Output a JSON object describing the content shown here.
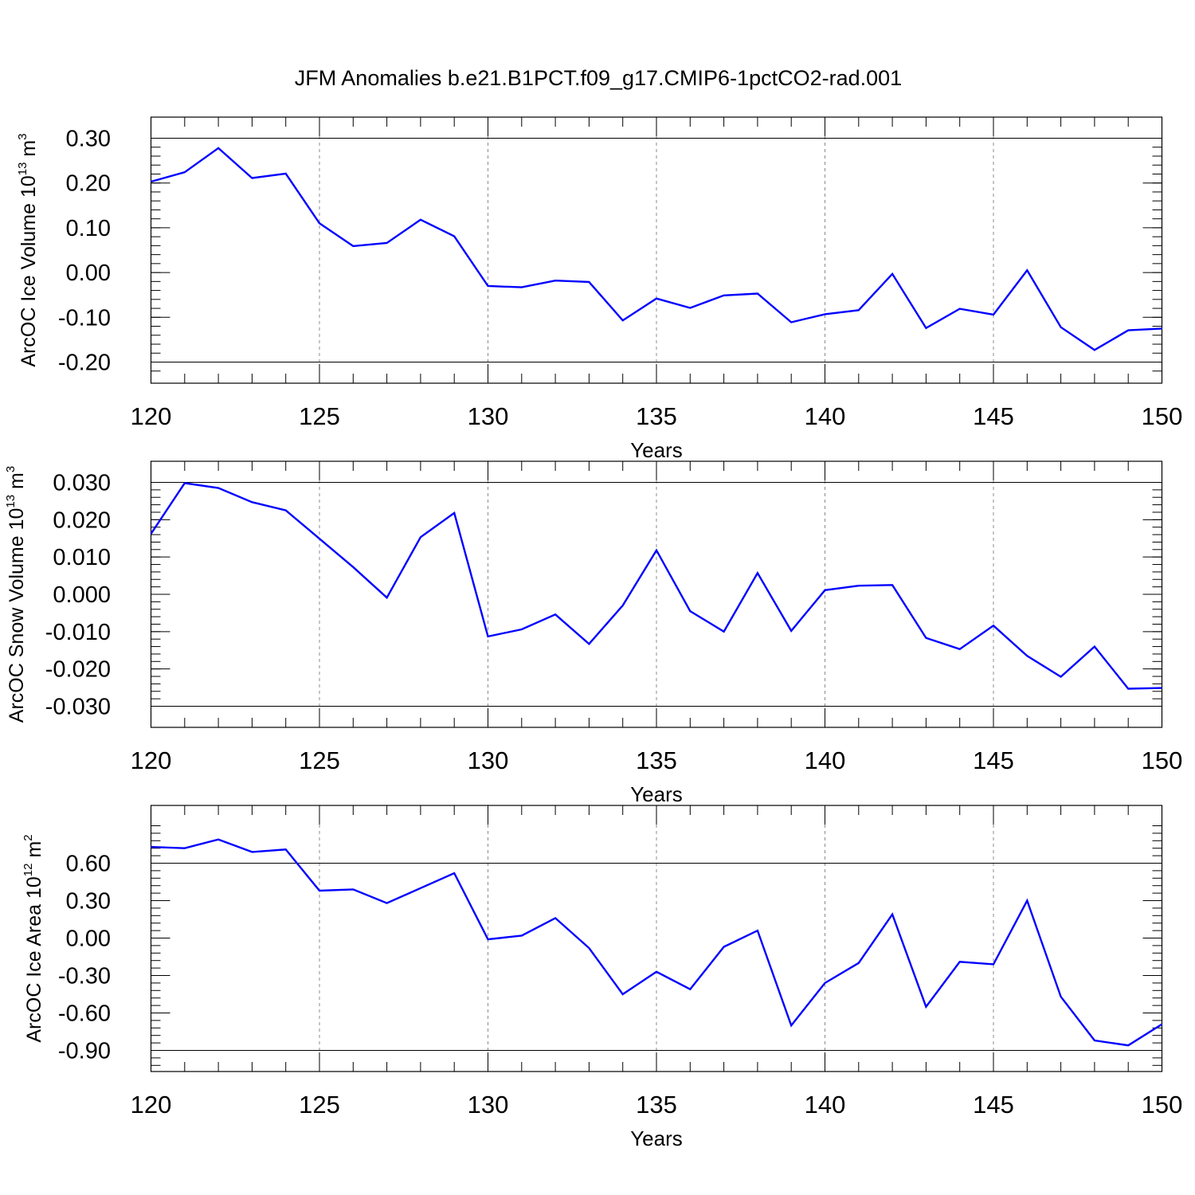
{
  "title": "JFM Anomalies b.e21.B1PCT.f09_g17.CMIP6-1pctCO2-rad.001",
  "chart_data": [
    {
      "type": "line",
      "title": "",
      "xlabel": "Years",
      "ylabel": "ArcOC Ice Volume 10",
      "ylabel_exp": "13",
      "ylabel_unit": "m",
      "ylabel_unit_exp": "3",
      "xlim": [
        120,
        150
      ],
      "ylim": [
        -0.22,
        0.3
      ],
      "x_ticks": [
        "120",
        "125",
        "130",
        "135",
        "140",
        "145",
        "150"
      ],
      "y_ticks": [
        "0.30",
        "0.20",
        "0.10",
        "0.00",
        "-0.10",
        "-0.20"
      ],
      "y_tick_values": [
        0.3,
        0.2,
        0.1,
        0.0,
        -0.1,
        -0.2
      ],
      "grid": "dashed vertical at major x ticks",
      "series": [
        {
          "color": "#0000ff",
          "x": [
            120,
            121,
            122,
            123,
            124,
            125,
            126,
            127,
            128,
            129,
            130,
            131,
            132,
            133,
            134,
            135,
            136,
            137,
            138,
            139,
            140,
            141,
            142,
            143,
            144,
            145,
            146,
            147,
            148,
            149,
            150
          ],
          "values": [
            0.203,
            0.224,
            0.278,
            0.211,
            0.221,
            0.11,
            0.059,
            0.066,
            0.118,
            0.081,
            -0.03,
            -0.033,
            -0.018,
            -0.021,
            -0.107,
            -0.058,
            -0.079,
            -0.051,
            -0.047,
            -0.111,
            -0.093,
            -0.084,
            -0.003,
            -0.124,
            -0.081,
            -0.094,
            0.005,
            -0.122,
            -0.173,
            -0.129,
            -0.125
          ]
        }
      ]
    },
    {
      "type": "line",
      "title": "",
      "xlabel": "Years",
      "ylabel": "ArcOC Snow Volume 10",
      "ylabel_exp": "13",
      "ylabel_unit": "m",
      "ylabel_unit_exp": "3",
      "xlim": [
        120,
        150
      ],
      "ylim": [
        -0.03,
        0.03
      ],
      "x_ticks": [
        "120",
        "125",
        "130",
        "135",
        "140",
        "145",
        "150"
      ],
      "y_ticks": [
        "0.030",
        "0.020",
        "0.010",
        "0.000",
        "-0.010",
        "-0.020",
        "-0.030"
      ],
      "y_tick_values": [
        0.03,
        0.02,
        0.01,
        0.0,
        -0.01,
        -0.02,
        -0.03
      ],
      "grid": "dashed vertical at major x ticks",
      "series": [
        {
          "color": "#0000ff",
          "x": [
            120,
            121,
            122,
            123,
            124,
            125,
            126,
            127,
            128,
            129,
            130,
            131,
            132,
            133,
            134,
            135,
            136,
            137,
            138,
            139,
            140,
            141,
            142,
            143,
            144,
            145,
            146,
            147,
            148,
            149,
            150
          ],
          "values": [
            0.0162,
            0.0298,
            0.0285,
            0.0247,
            0.0225,
            0.0149,
            0.0073,
            -0.0009,
            0.0153,
            0.0218,
            -0.0113,
            -0.0094,
            -0.0054,
            -0.0133,
            -0.003,
            0.0118,
            -0.0045,
            -0.01,
            0.0057,
            -0.0098,
            0.0011,
            0.0023,
            0.0025,
            -0.0117,
            -0.0147,
            -0.0084,
            -0.0165,
            -0.0221,
            -0.014,
            -0.0253,
            -0.0251
          ]
        }
      ]
    },
    {
      "type": "line",
      "title": "",
      "xlabel": "Years",
      "ylabel": "ArcOC Ice Area 10",
      "ylabel_exp": "12",
      "ylabel_unit": "m",
      "ylabel_unit_exp": "2",
      "xlim": [
        120,
        150
      ],
      "ylim": [
        -1.04,
        0.91
      ],
      "x_ticks": [
        "120",
        "125",
        "130",
        "135",
        "140",
        "145",
        "150"
      ],
      "y_ticks": [
        "0.60",
        "0.30",
        "0.00",
        "-0.30",
        "-0.60",
        "-0.90"
      ],
      "y_tick_values": [
        0.6,
        0.3,
        0.0,
        -0.3,
        -0.6,
        -0.9
      ],
      "grid": "dashed vertical at major x ticks",
      "series": [
        {
          "color": "#0000ff",
          "x": [
            120,
            121,
            122,
            123,
            124,
            125,
            126,
            127,
            128,
            129,
            130,
            131,
            132,
            133,
            134,
            135,
            136,
            137,
            138,
            139,
            140,
            141,
            142,
            143,
            144,
            145,
            146,
            147,
            148,
            149,
            150
          ],
          "values": [
            0.73,
            0.72,
            0.79,
            0.69,
            0.71,
            0.38,
            0.39,
            0.28,
            0.4,
            0.52,
            -0.01,
            0.02,
            0.16,
            -0.08,
            -0.45,
            -0.27,
            -0.41,
            -0.07,
            0.06,
            -0.7,
            -0.36,
            -0.2,
            0.19,
            -0.55,
            -0.19,
            -0.21,
            0.3,
            -0.47,
            -0.82,
            -0.86,
            -0.69
          ]
        }
      ]
    }
  ]
}
